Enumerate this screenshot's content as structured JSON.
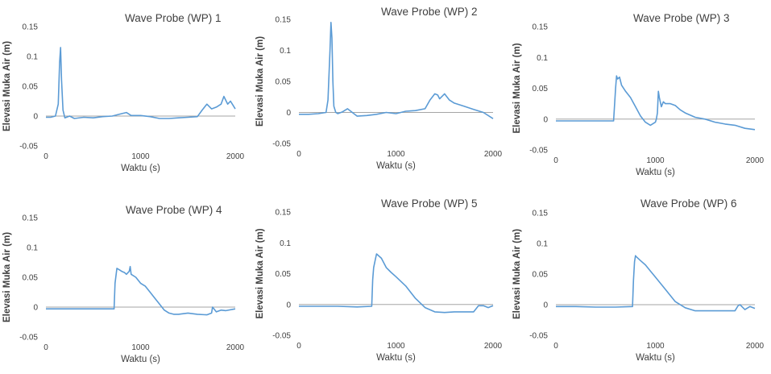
{
  "style": {
    "line_color": "#5b9bd5",
    "axis_color": "#a6a6a6",
    "text_color": "#404040"
  },
  "chart_data": [
    {
      "type": "line",
      "title": "Wave Probe (WP) 1",
      "xlabel": "Waktu (s)",
      "ylabel": "Elevasi Muka Air (m)",
      "xlim": [
        0,
        2000
      ],
      "ylim": [
        -0.05,
        0.15
      ],
      "xticks": [
        "0",
        "1000",
        "2000"
      ],
      "yticks": [
        "0.15",
        "0.1",
        "0.05",
        "0",
        "-0.05"
      ],
      "grid": false,
      "series": [
        {
          "x": [
            0,
            50,
            100,
            130,
            145,
            155,
            165,
            180,
            200,
            250,
            300,
            400,
            500,
            600,
            700,
            800,
            850,
            900,
            1000,
            1100,
            1200,
            1300,
            1400,
            1500,
            1600,
            1650,
            1700,
            1750,
            1800,
            1850,
            1880,
            1920,
            1950,
            2000
          ],
          "y": [
            -0.002,
            -0.002,
            0.0,
            0.02,
            0.09,
            0.115,
            0.06,
            0.01,
            -0.003,
            0.0,
            -0.004,
            -0.002,
            -0.003,
            -0.001,
            0.0,
            0.004,
            0.006,
            0.001,
            0.001,
            -0.001,
            -0.004,
            -0.004,
            -0.003,
            -0.002,
            -0.001,
            0.01,
            0.02,
            0.012,
            0.015,
            0.02,
            0.033,
            0.02,
            0.025,
            0.012
          ]
        }
      ]
    },
    {
      "type": "line",
      "title": "Wave Probe (WP) 2",
      "xlabel": "Waktu (s)",
      "ylabel": "Elevasi Muka Air (m)",
      "xlim": [
        0,
        2000
      ],
      "ylim": [
        -0.05,
        0.15
      ],
      "xticks": [
        "0",
        "1000",
        "2000"
      ],
      "yticks": [
        "0.15",
        "0.1",
        "0.05",
        "0",
        "-0.05"
      ],
      "grid": false,
      "series": [
        {
          "x": [
            0,
            100,
            200,
            280,
            300,
            320,
            330,
            340,
            350,
            360,
            380,
            400,
            450,
            500,
            600,
            700,
            800,
            900,
            1000,
            1100,
            1200,
            1300,
            1350,
            1400,
            1430,
            1450,
            1500,
            1550,
            1600,
            1700,
            1800,
            1900,
            2000
          ],
          "y": [
            -0.003,
            -0.003,
            -0.002,
            0.0,
            0.02,
            0.1,
            0.145,
            0.12,
            0.05,
            0.01,
            0.0,
            -0.002,
            0.001,
            0.006,
            -0.006,
            -0.005,
            -0.003,
            0.0,
            -0.002,
            0.002,
            0.003,
            0.006,
            0.02,
            0.03,
            0.028,
            0.022,
            0.03,
            0.02,
            0.015,
            0.01,
            0.005,
            0.0,
            -0.01
          ]
        }
      ]
    },
    {
      "type": "line",
      "title": "Wave Probe (WP) 3",
      "xlabel": "Waktu (s)",
      "ylabel": "Elevasi Muka Air (m)",
      "xlim": [
        0,
        2000
      ],
      "ylim": [
        -0.05,
        0.15
      ],
      "xticks": [
        "0",
        "1000",
        "2000"
      ],
      "yticks": [
        "0.15",
        "0.1",
        "0.05",
        "0",
        "-0.05"
      ],
      "grid": false,
      "series": [
        {
          "x": [
            0,
            200,
            400,
            580,
            600,
            610,
            620,
            640,
            660,
            700,
            750,
            800,
            850,
            900,
            950,
            1000,
            1010,
            1020,
            1030,
            1040,
            1060,
            1080,
            1100,
            1150,
            1200,
            1250,
            1300,
            1400,
            1500,
            1600,
            1700,
            1800,
            1900,
            2000
          ],
          "y": [
            -0.003,
            -0.003,
            -0.003,
            -0.003,
            0.05,
            0.07,
            0.065,
            0.068,
            0.055,
            0.045,
            0.035,
            0.02,
            0.005,
            -0.005,
            -0.01,
            -0.005,
            0.0,
            0.01,
            0.045,
            0.035,
            0.02,
            0.028,
            0.025,
            0.025,
            0.022,
            0.015,
            0.01,
            0.003,
            0.0,
            -0.005,
            -0.008,
            -0.01,
            -0.015,
            -0.017
          ]
        }
      ]
    },
    {
      "type": "line",
      "title": "Wave Probe (WP) 4",
      "xlabel": "Waktu (s)",
      "ylabel": "Elevasi Muka Air (m)",
      "xlim": [
        0,
        2000
      ],
      "ylim": [
        -0.05,
        0.15
      ],
      "xticks": [
        "0",
        "1000",
        "2000"
      ],
      "yticks": [
        "0.15",
        "0.1",
        "0.05",
        "0",
        "-0.05"
      ],
      "grid": false,
      "series": [
        {
          "x": [
            0,
            200,
            400,
            600,
            720,
            730,
            750,
            780,
            800,
            830,
            850,
            880,
            890,
            900,
            950,
            1000,
            1050,
            1100,
            1150,
            1200,
            1250,
            1300,
            1350,
            1400,
            1500,
            1600,
            1700,
            1750,
            1760,
            1800,
            1850,
            1900,
            2000
          ],
          "y": [
            -0.003,
            -0.003,
            -0.003,
            -0.003,
            -0.003,
            0.04,
            0.065,
            0.062,
            0.06,
            0.058,
            0.055,
            0.06,
            0.068,
            0.055,
            0.05,
            0.04,
            0.035,
            0.025,
            0.015,
            0.005,
            -0.005,
            -0.01,
            -0.012,
            -0.012,
            -0.01,
            -0.012,
            -0.013,
            -0.01,
            0.0,
            -0.008,
            -0.005,
            -0.006,
            -0.003
          ]
        }
      ]
    },
    {
      "type": "line",
      "title": "Wave Probe (WP) 5",
      "xlabel": "Waktu (s)",
      "ylabel": "Elevasi Muka Air (m)",
      "xlim": [
        0,
        2000
      ],
      "ylim": [
        -0.05,
        0.15
      ],
      "xticks": [
        "0",
        "1000",
        "2000"
      ],
      "yticks": [
        "0.15",
        "0.1",
        "0.05",
        "0",
        "-0.05"
      ],
      "grid": false,
      "series": [
        {
          "x": [
            0,
            200,
            400,
            600,
            750,
            760,
            770,
            790,
            800,
            850,
            900,
            950,
            1000,
            1100,
            1200,
            1300,
            1400,
            1500,
            1600,
            1700,
            1800,
            1850,
            1900,
            1950,
            2000
          ],
          "y": [
            -0.003,
            -0.003,
            -0.003,
            -0.004,
            -0.003,
            0.04,
            0.06,
            0.075,
            0.082,
            0.075,
            0.06,
            0.052,
            0.045,
            0.03,
            0.01,
            -0.005,
            -0.012,
            -0.013,
            -0.012,
            -0.012,
            -0.012,
            -0.002,
            -0.002,
            -0.005,
            -0.002
          ]
        }
      ]
    },
    {
      "type": "line",
      "title": "Wave Probe (WP) 6",
      "xlabel": "Waktu (s)",
      "ylabel": "Elevasi Muka Air (m)",
      "xlim": [
        0,
        2000
      ],
      "ylim": [
        -0.05,
        0.15
      ],
      "xticks": [
        "0",
        "1000",
        "2000"
      ],
      "yticks": [
        "0.15",
        "0.1",
        "0.05",
        "0",
        "-0.05"
      ],
      "grid": false,
      "series": [
        {
          "x": [
            0,
            200,
            400,
            600,
            770,
            780,
            790,
            800,
            810,
            850,
            900,
            950,
            1000,
            1100,
            1200,
            1300,
            1400,
            1500,
            1600,
            1700,
            1800,
            1830,
            1850,
            1900,
            1950,
            2000
          ],
          "y": [
            -0.003,
            -0.003,
            -0.004,
            -0.004,
            -0.003,
            0.04,
            0.07,
            0.08,
            0.078,
            0.072,
            0.065,
            0.055,
            0.045,
            0.025,
            0.005,
            -0.005,
            -0.01,
            -0.01,
            -0.01,
            -0.01,
            -0.01,
            -0.002,
            0.0,
            -0.008,
            -0.003,
            -0.006
          ]
        }
      ]
    }
  ]
}
